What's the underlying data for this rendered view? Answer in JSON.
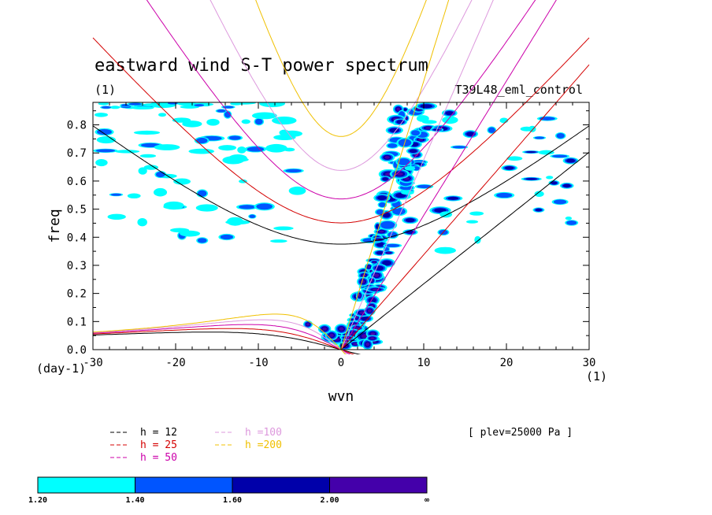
{
  "chart_data": {
    "type": "contour",
    "title": "eastward wind S-T power spectrum",
    "units_left": "(1)",
    "experiment": "T39L48_eml_control",
    "xlabel": "wvn",
    "ylabel": "freq",
    "x_units": "(1)",
    "y_units": "(day-1)",
    "xlim": [
      -30,
      30
    ],
    "ylim": [
      0,
      0.88
    ],
    "x_ticks": [
      -30,
      -20,
      -10,
      0,
      10,
      20,
      30
    ],
    "x_tick_labels": [
      "-30",
      "-20",
      "-10",
      "0",
      "10",
      "20",
      "30"
    ],
    "y_ticks": [
      0,
      0.1,
      0.2,
      0.3,
      0.4,
      0.5,
      0.6,
      0.7,
      0.8
    ],
    "y_tick_labels": [
      "0.0",
      "0.1",
      "0.2",
      "0.3",
      "0.4",
      "0.5",
      "0.6",
      "0.7",
      "0.8"
    ],
    "annotation": "[ plev=25000 Pa ]",
    "dispersion_curves": [
      {
        "label": "h = 12",
        "h": 12,
        "color": "#000000"
      },
      {
        "label": "h = 25",
        "h": 25,
        "color": "#d40000"
      },
      {
        "label": "h = 50",
        "h": 50,
        "color": "#cc00aa"
      },
      {
        "label": "h =100",
        "h": 100,
        "color": "#dd99dd"
      },
      {
        "label": "h =200",
        "h": 200,
        "color": "#f0c000"
      }
    ],
    "colorbar": {
      "levels": [
        "1.20",
        "1.40",
        "1.60",
        "2.00",
        "∞"
      ],
      "colors": [
        "#00ffff",
        "#0055ff",
        "#0000aa",
        "#4400aa"
      ]
    },
    "contour_regions": [
      {
        "desc": "kelvin-band",
        "x": [
          1,
          9
        ],
        "y": [
          0.0,
          0.85
        ],
        "level": 3
      },
      {
        "desc": "origin-blob",
        "x": [
          -4,
          3
        ],
        "y": [
          0.0,
          0.12
        ],
        "level": 3
      },
      {
        "desc": "scattered-west",
        "x": [
          -30,
          -5
        ],
        "y": [
          0.3,
          0.88
        ],
        "level": 1
      },
      {
        "desc": "scattered-east",
        "x": [
          6,
          28
        ],
        "y": [
          0.2,
          0.88
        ],
        "level": 2
      }
    ]
  }
}
